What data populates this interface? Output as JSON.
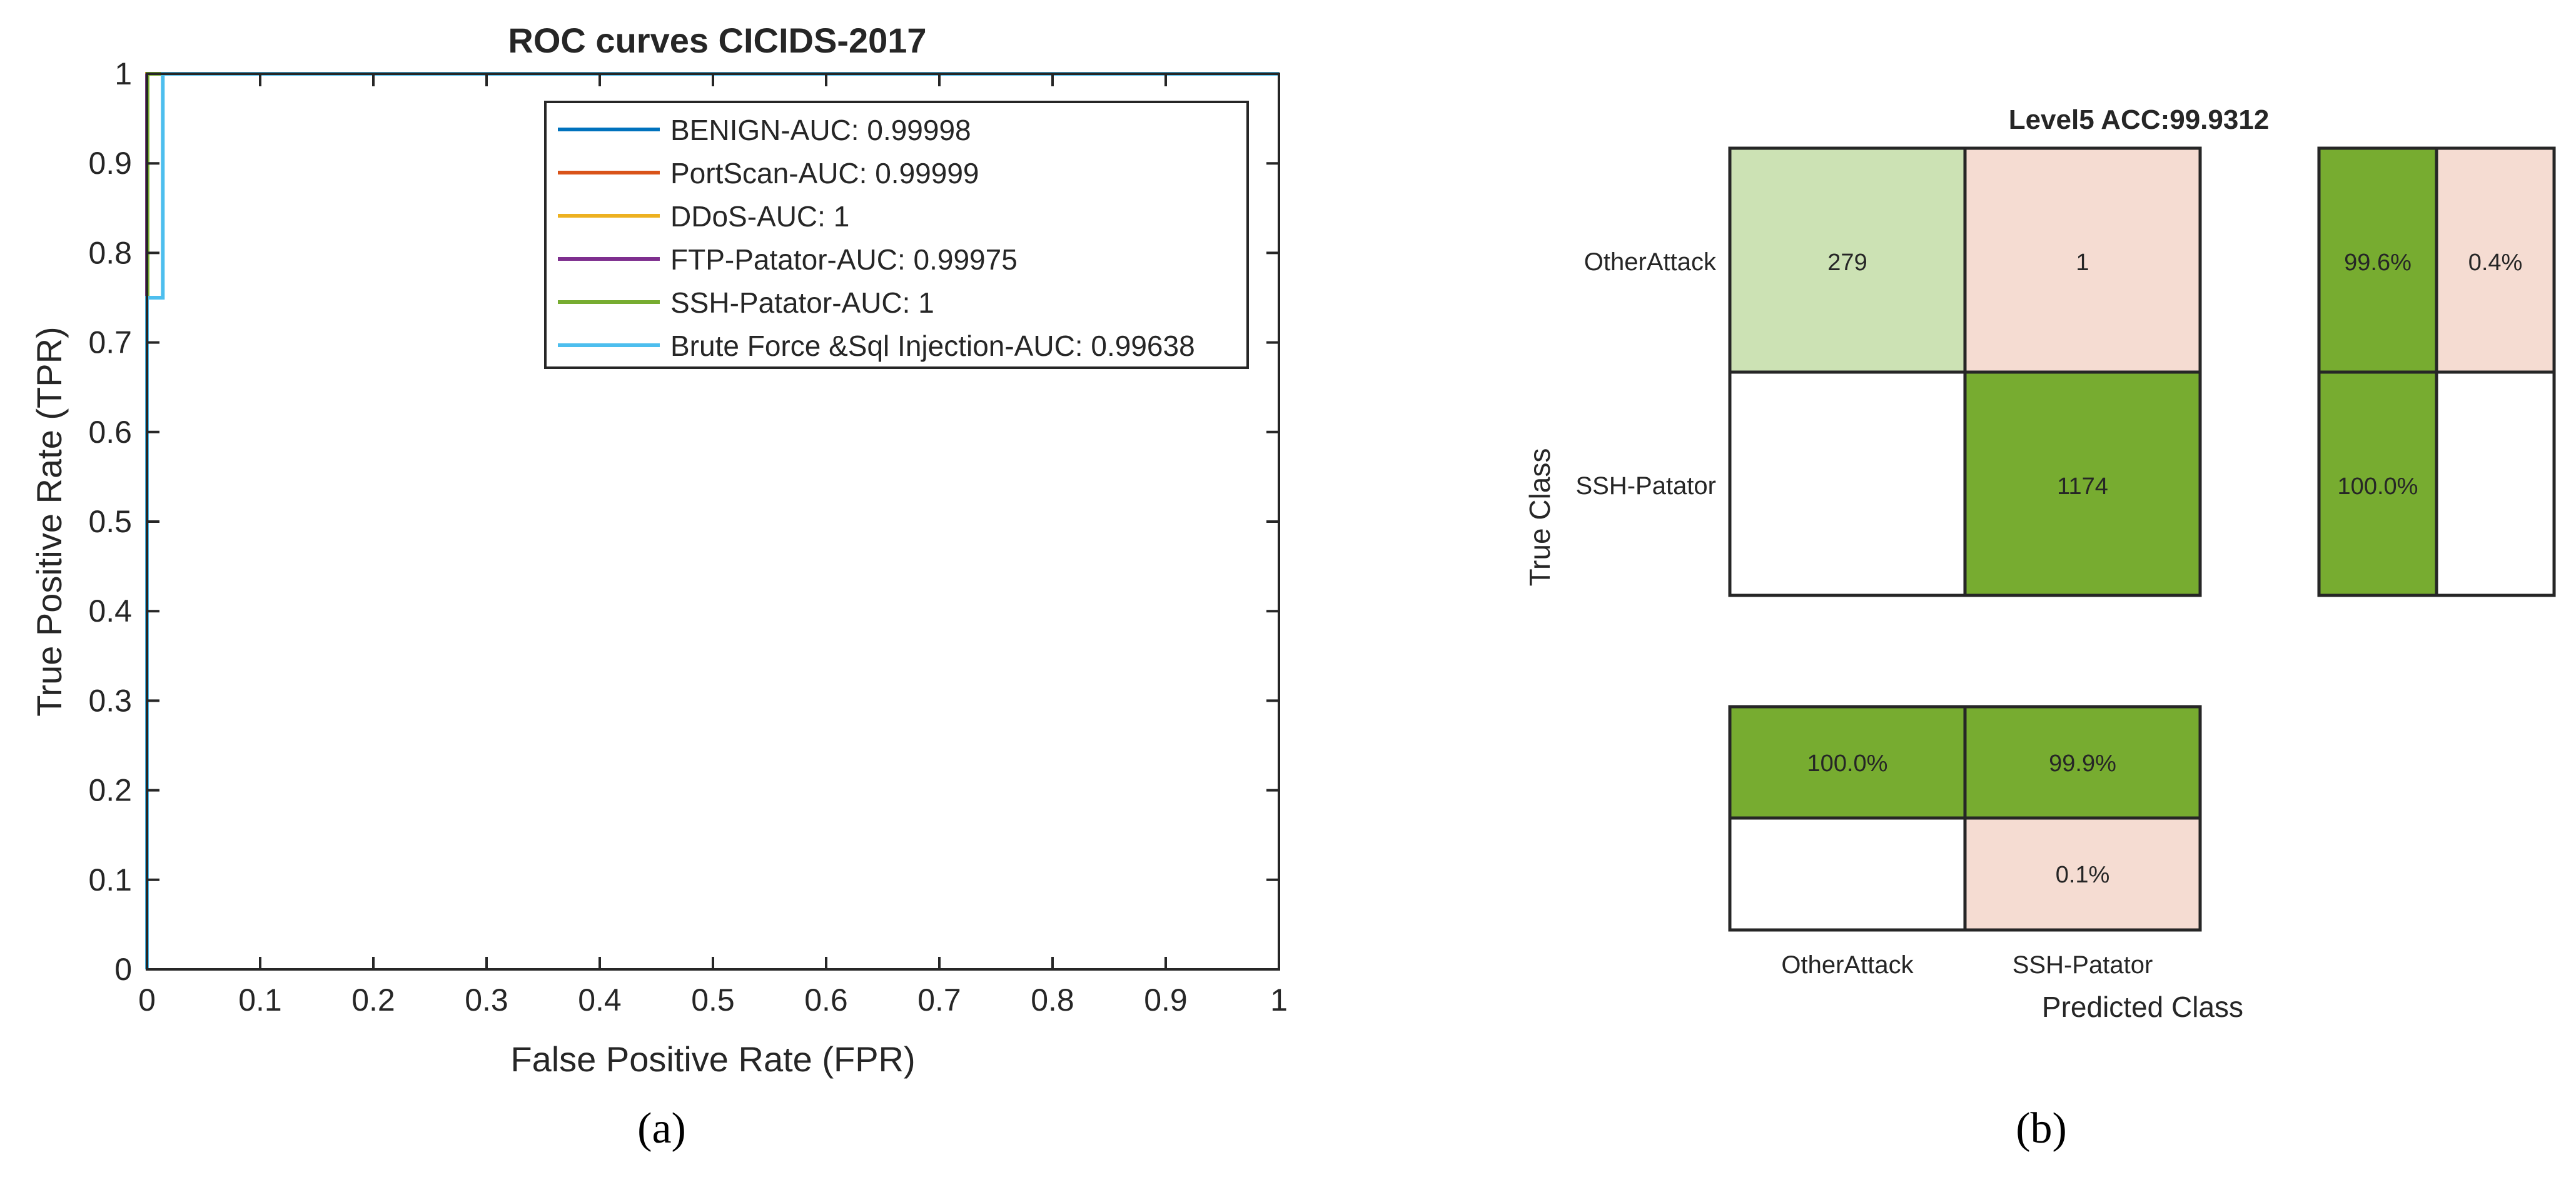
{
  "colors": {
    "benign": "#0072BD",
    "portscan": "#D95319",
    "ddos": "#EDB120",
    "ftp": "#7E2F8E",
    "ssh": "#77AC30",
    "brute": "#4DBEEE",
    "cm_dark": "#77AC30",
    "cm_light_green": "#CCE2B4",
    "cm_pink": "#F5DCD2",
    "axis": "#262626"
  },
  "panel_labels": {
    "a": "(a)",
    "b": "(b)"
  },
  "chart_data": [
    {
      "type": "line",
      "title": "ROC curves CICIDS-2017",
      "xlabel": "False Positive Rate (FPR)",
      "ylabel": "True Positive Rate (TPR)",
      "xlim": [
        0,
        1
      ],
      "ylim": [
        0,
        1
      ],
      "xticks": [
        "0",
        "0.1",
        "0.2",
        "0.3",
        "0.4",
        "0.5",
        "0.6",
        "0.7",
        "0.8",
        "0.9",
        "1"
      ],
      "yticks": [
        "0",
        "0.1",
        "0.2",
        "0.3",
        "0.4",
        "0.5",
        "0.6",
        "0.7",
        "0.8",
        "0.9",
        "1"
      ],
      "legend_position": "top-right",
      "series": [
        {
          "name": "BENIGN",
          "legend": "BENIGN-AUC: 0.99998",
          "color_key": "benign",
          "x": [
            0,
            0,
            2e-05,
            1
          ],
          "y": [
            0,
            0.9999,
            1,
            1
          ]
        },
        {
          "name": "PortScan",
          "legend": "PortScan-AUC: 0.99999",
          "color_key": "portscan",
          "x": [
            0,
            0,
            1e-05,
            1
          ],
          "y": [
            0,
            0.9999,
            1,
            1
          ]
        },
        {
          "name": "DDoS",
          "legend": "DDoS-AUC: 1",
          "color_key": "ddos",
          "x": [
            0,
            0,
            1
          ],
          "y": [
            0,
            1,
            1
          ]
        },
        {
          "name": "FTP-Patator",
          "legend": "FTP-Patator-AUC: 0.99975",
          "color_key": "ftp",
          "x": [
            0,
            0,
            0.0003,
            1
          ],
          "y": [
            0,
            0.999,
            1,
            1
          ]
        },
        {
          "name": "SSH-Patator",
          "legend": "SSH-Patator-AUC: 1",
          "color_key": "ssh",
          "x": [
            0,
            0,
            0.0005,
            0.0005,
            0.015,
            1
          ],
          "y": [
            0,
            0.75,
            0.75,
            1,
            1,
            1
          ]
        },
        {
          "name": "Brute Force &Sql Injection",
          "legend": "Brute Force &Sql Injection-AUC: 0.99638",
          "color_key": "brute",
          "x": [
            0,
            0,
            0.014,
            0.014,
            1
          ],
          "y": [
            0,
            0.75,
            0.75,
            1,
            1
          ]
        }
      ]
    },
    {
      "type": "heatmap",
      "title": "Level5 ACC:99.9312",
      "xlabel": "Predicted Class",
      "ylabel": "True Class",
      "classes": [
        "OtherAttack",
        "SSH-Patator"
      ],
      "matrix": [
        [
          279,
          1
        ],
        [
          null,
          1174
        ]
      ],
      "matrix_labels": [
        [
          "279",
          "1"
        ],
        [
          "",
          "1174"
        ]
      ],
      "row_summary": [
        [
          "99.6%",
          "0.4%"
        ],
        [
          "100.0%",
          ""
        ]
      ],
      "col_summary": [
        [
          "100.0%",
          "99.9%"
        ],
        [
          "",
          "0.1%"
        ]
      ]
    }
  ]
}
